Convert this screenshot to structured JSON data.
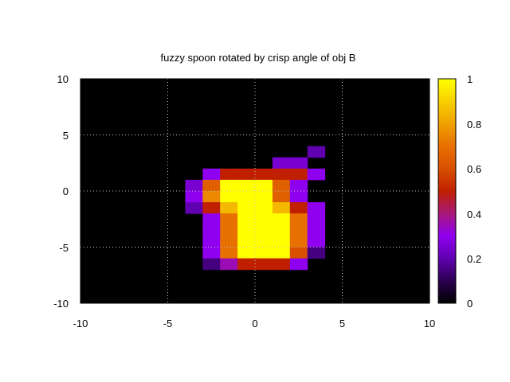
{
  "chart_data": {
    "type": "heatmap",
    "title": "fuzzy spoon rotated by crisp angle of obj B",
    "xlabel": "",
    "ylabel": "",
    "xlim": [
      -10,
      10
    ],
    "ylim": [
      -10,
      10
    ],
    "x_ticks": [
      "-10",
      "-5",
      "0",
      "5",
      "10"
    ],
    "y_ticks": [
      "10",
      "5",
      "0",
      "-5",
      "-10"
    ],
    "grid": true,
    "background_value": 0,
    "cell_size": 1,
    "cells": [
      [
        4,
        -2,
        0.2
      ],
      [
        2,
        -1,
        0.25
      ],
      [
        3,
        -1,
        0.25
      ],
      [
        -2,
        0,
        0.3
      ],
      [
        -1,
        0,
        0.5
      ],
      [
        0,
        0,
        0.5
      ],
      [
        1,
        0,
        0.5
      ],
      [
        2,
        0,
        0.5
      ],
      [
        3,
        0,
        0.5
      ],
      [
        4,
        0,
        0.3
      ],
      [
        -3,
        1,
        0.25
      ],
      [
        -2,
        1,
        0.65
      ],
      [
        -1,
        1,
        1
      ],
      [
        0,
        1,
        1
      ],
      [
        1,
        1,
        1
      ],
      [
        2,
        1,
        0.65
      ],
      [
        3,
        1,
        0.3
      ],
      [
        -3,
        2,
        0.3
      ],
      [
        -2,
        2,
        0.75
      ],
      [
        -1,
        2,
        1
      ],
      [
        0,
        2,
        1
      ],
      [
        1,
        2,
        1
      ],
      [
        2,
        2,
        0.65
      ],
      [
        3,
        2,
        0.3
      ],
      [
        -3,
        3,
        0.2
      ],
      [
        -2,
        3,
        0.5
      ],
      [
        -1,
        3,
        0.85
      ],
      [
        0,
        3,
        1
      ],
      [
        1,
        3,
        1
      ],
      [
        2,
        3,
        0.85
      ],
      [
        3,
        3,
        0.5
      ],
      [
        4,
        3,
        0.3
      ],
      [
        -2,
        4,
        0.3
      ],
      [
        -1,
        4,
        0.7
      ],
      [
        0,
        4,
        1
      ],
      [
        1,
        4,
        1
      ],
      [
        2,
        4,
        1
      ],
      [
        3,
        4,
        0.7
      ],
      [
        4,
        4,
        0.3
      ],
      [
        -2,
        5,
        0.3
      ],
      [
        -1,
        5,
        0.7
      ],
      [
        0,
        5,
        1
      ],
      [
        1,
        5,
        1
      ],
      [
        2,
        5,
        1
      ],
      [
        3,
        5,
        0.7
      ],
      [
        4,
        5,
        0.3
      ],
      [
        -2,
        6,
        0.3
      ],
      [
        -1,
        6,
        0.7
      ],
      [
        0,
        6,
        1
      ],
      [
        1,
        6,
        1
      ],
      [
        2,
        6,
        1
      ],
      [
        3,
        6,
        0.7
      ],
      [
        4,
        6,
        0.3
      ],
      [
        -2,
        7,
        0.3
      ],
      [
        -1,
        7,
        0.7
      ],
      [
        0,
        7,
        1
      ],
      [
        1,
        7,
        1
      ],
      [
        2,
        7,
        1
      ],
      [
        3,
        7,
        0.6
      ],
      [
        4,
        7,
        0.15
      ],
      [
        -2,
        8,
        0.15
      ],
      [
        -1,
        8,
        0.35
      ],
      [
        0,
        8,
        0.5
      ],
      [
        1,
        8,
        0.5
      ],
      [
        2,
        8,
        0.5
      ],
      [
        3,
        8,
        0.3
      ]
    ],
    "colorbar": {
      "range": [
        0,
        1
      ],
      "ticks": [
        "1",
        "0.8",
        "0.6",
        "0.4",
        "0.2",
        "0"
      ]
    }
  }
}
